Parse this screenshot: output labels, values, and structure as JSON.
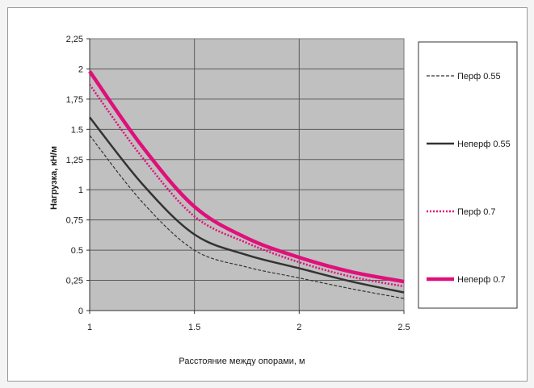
{
  "chart_data": {
    "type": "line",
    "title": "",
    "xlabel": "Расстояние между опорами, м",
    "ylabel": "Нагрузка, кН/м",
    "xlim": [
      1,
      2.5
    ],
    "ylim": [
      0,
      2.25
    ],
    "x_ticks": [
      1,
      1.5,
      2,
      2.5
    ],
    "x_tick_labels": [
      "1",
      "1.5",
      "2",
      "2.5"
    ],
    "y_ticks": [
      0,
      0.25,
      0.5,
      0.75,
      1,
      1.25,
      1.5,
      1.75,
      2,
      2.25
    ],
    "y_tick_labels": [
      "0",
      "0,25",
      "0.5",
      "0,75",
      "1",
      "1,25",
      "1.5",
      "1,75",
      "2",
      "2,25"
    ],
    "grid": true,
    "plot_background": "#c0c0c0",
    "legend_position": "right",
    "series": [
      {
        "name": "Перф 0.55",
        "color": "#333333",
        "style": "dashed-thin",
        "x": [
          1,
          1.25,
          1.5,
          1.75,
          2,
          2.25,
          2.5
        ],
        "y": [
          1.45,
          0.9,
          0.5,
          0.36,
          0.27,
          0.18,
          0.1
        ]
      },
      {
        "name": "Неперф 0.55",
        "color": "#333333",
        "style": "solid",
        "x": [
          1,
          1.25,
          1.5,
          1.75,
          2,
          2.25,
          2.5
        ],
        "y": [
          1.6,
          1.05,
          0.63,
          0.46,
          0.35,
          0.24,
          0.15
        ]
      },
      {
        "name": "Перф 0.7",
        "color": "#e0107a",
        "style": "dotted",
        "x": [
          1,
          1.25,
          1.5,
          1.75,
          2,
          2.25,
          2.5
        ],
        "y": [
          1.87,
          1.27,
          0.78,
          0.56,
          0.4,
          0.28,
          0.2
        ]
      },
      {
        "name": "Неперф 0.7",
        "color": "#e0107a",
        "style": "thick",
        "x": [
          1,
          1.25,
          1.5,
          1.75,
          2,
          2.25,
          2.5
        ],
        "y": [
          1.98,
          1.36,
          0.86,
          0.6,
          0.44,
          0.32,
          0.24
        ]
      }
    ]
  }
}
